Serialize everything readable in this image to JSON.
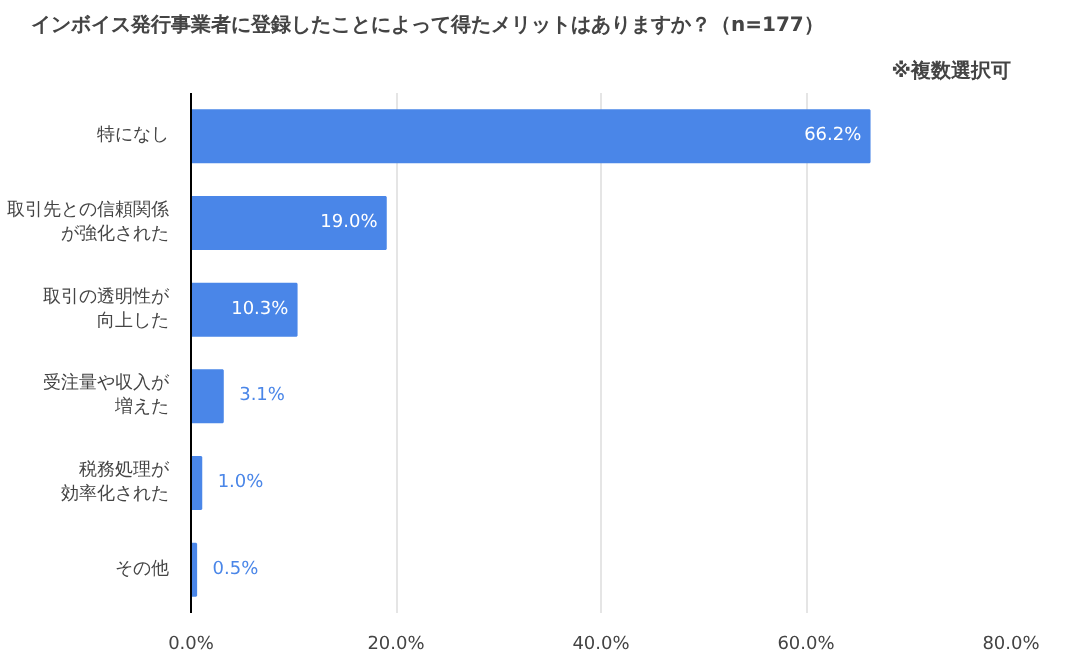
{
  "chart_data": {
    "type": "bar",
    "orientation": "horizontal",
    "title": "インボイス発行事業者に登録したことによって得たメリットはありますか？（n=177）",
    "subtitle": "※複数選択可",
    "categories": [
      "特になし",
      "取引先との信頼関係が強化された",
      "取引の透明性が向上した",
      "受注量や収入が増えた",
      "税務処理が効率化された",
      "その他"
    ],
    "values": [
      66.2,
      19.0,
      10.3,
      3.1,
      1.0,
      0.5
    ],
    "value_labels": [
      "66.2%",
      "19.0%",
      "10.3%",
      "3.1%",
      "1.0%",
      "0.5%"
    ],
    "color": "#4a86e8",
    "xlim": [
      0,
      80
    ],
    "xticks": [
      {
        "value": 0,
        "label": "0.0%"
      },
      {
        "value": 20,
        "label": "20.0%"
      },
      {
        "value": 40,
        "label": "40.0%"
      },
      {
        "value": 60,
        "label": "60.0%"
      },
      {
        "value": 80,
        "label": "80.0%"
      }
    ],
    "grid": "x"
  }
}
